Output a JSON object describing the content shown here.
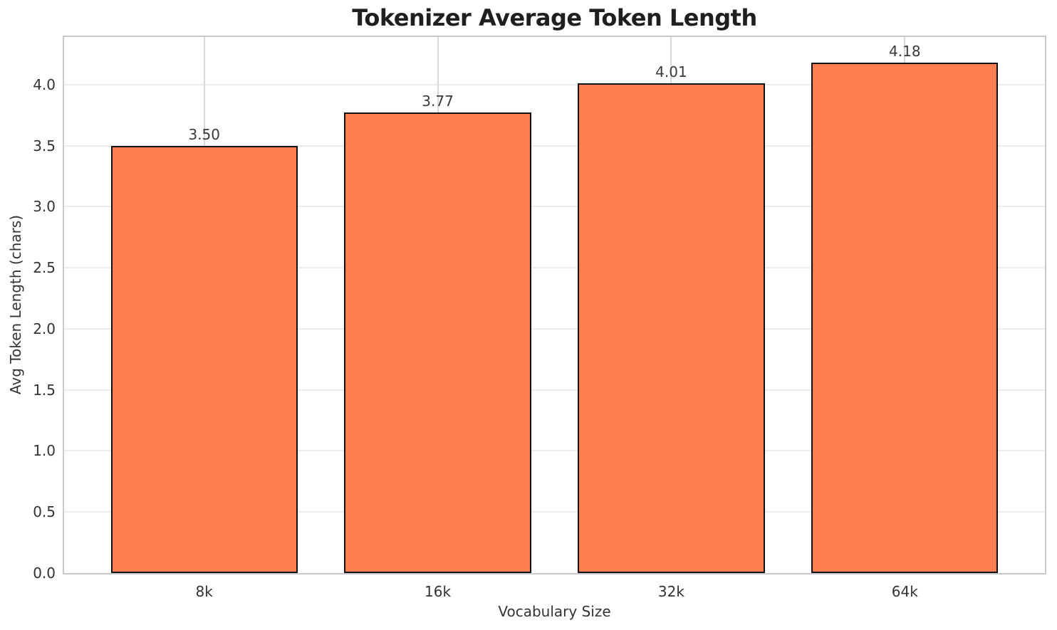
{
  "chart_data": {
    "type": "bar",
    "title": "Tokenizer Average Token Length",
    "xlabel": "Vocabulary Size",
    "ylabel": "Avg Token Length (chars)",
    "categories": [
      "8k",
      "16k",
      "32k",
      "64k"
    ],
    "values": [
      3.5,
      3.77,
      4.01,
      4.18
    ],
    "value_labels": [
      "3.50",
      "3.77",
      "4.01",
      "4.18"
    ],
    "yticks": [
      0.0,
      0.5,
      1.0,
      1.5,
      2.0,
      2.5,
      3.0,
      3.5,
      4.0
    ],
    "ytick_labels": [
      "0.0",
      "0.5",
      "1.0",
      "1.5",
      "2.0",
      "2.5",
      "3.0",
      "3.5",
      "4.0"
    ],
    "ylim": [
      0,
      4.39
    ],
    "xlim": [
      -0.6,
      3.6
    ],
    "bar_width_units": 0.8,
    "grid": "both",
    "legend": "none",
    "colors": {
      "bar_fill": "#FF7F50",
      "bar_edge": "#111111",
      "grid_horizontal": "#ededed",
      "grid_vertical": "#d9d9d9",
      "spine": "#c9c9c9",
      "title_text": "#1f1f1f",
      "axis_text": "#333333",
      "annotation_text": "#3a3a3a",
      "background": "#ffffff"
    }
  }
}
